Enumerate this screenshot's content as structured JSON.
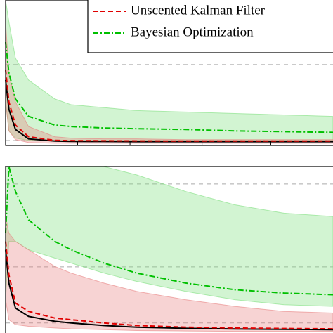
{
  "chart_data": [
    {
      "type": "line",
      "legend": "upper right",
      "grid": true,
      "x": [
        0,
        0.01,
        0.03,
        0.07,
        0.15,
        0.2,
        0.3,
        0.4,
        0.55,
        0.7,
        0.85,
        1
      ],
      "xlim": [
        0,
        1
      ],
      "xticks": [
        0.22,
        0.38,
        0.6,
        0.81
      ],
      "ylim": [
        0,
        1
      ],
      "yticks": [
        0.034,
        0.556
      ],
      "series": [
        {
          "name": "Bayesian Optimization",
          "color": "#00c000",
          "band_color": "#7fe07f",
          "line_style": "dashdot",
          "values": [
            0.71,
            0.5,
            0.32,
            0.2,
            0.14,
            0.13,
            0.12,
            0.115,
            0.11,
            0.1,
            0.095,
            0.09
          ],
          "upper": [
            1,
            0.85,
            0.6,
            0.45,
            0.32,
            0.28,
            0.26,
            0.24,
            0.23,
            0.22,
            0.21,
            0.2
          ],
          "lower": [
            0.3,
            0.1,
            0.05,
            0.035,
            0.03,
            0.03,
            0.03,
            0.03,
            0.03,
            0.03,
            0.03,
            0.03
          ]
        },
        {
          "name": "Unscented Kalman Filter",
          "color": "#e00000",
          "band_color": "#e88080",
          "line_style": "dashed",
          "values": [
            0.52,
            0.3,
            0.14,
            0.06,
            0.035,
            0.033,
            0.032,
            0.031,
            0.03,
            0.03,
            0.03,
            0.03
          ],
          "upper": [
            0.85,
            0.5,
            0.3,
            0.13,
            0.06,
            0.05,
            0.045,
            0.045,
            0.04,
            0.04,
            0.04,
            0.04
          ],
          "lower": [
            0.3,
            0.1,
            0.04,
            0.02,
            0.015,
            0.015,
            0.015,
            0.015,
            0.015,
            0.015,
            0.015,
            0.015
          ]
        },
        {
          "color": "#000000",
          "line_style": "solid",
          "values": [
            0.45,
            0.25,
            0.11,
            0.045,
            0.03,
            0.028,
            0.027,
            0.026,
            0.026,
            0.026,
            0.026,
            0.026
          ]
        }
      ]
    },
    {
      "type": "line",
      "grid": true,
      "x": [
        0,
        0.01,
        0.03,
        0.07,
        0.15,
        0.2,
        0.3,
        0.4,
        0.55,
        0.7,
        0.85,
        1
      ],
      "xlim": [
        0,
        1
      ],
      "ylim": [
        0,
        1
      ],
      "yticks": [
        0.06,
        0.397,
        0.895
      ],
      "series": [
        {
          "color": "#00c000",
          "band_color": "#7fe07f",
          "line_style": "dashdot",
          "values": [
            0.6,
            1,
            0.85,
            0.68,
            0.55,
            0.5,
            0.42,
            0.36,
            0.3,
            0.26,
            0.24,
            0.23
          ],
          "upper": [
            1,
            1,
            1,
            1,
            1,
            1,
            1,
            0.95,
            0.85,
            0.77,
            0.72,
            0.7
          ],
          "lower": [
            0.2,
            0.55,
            0.55,
            0.5,
            0.45,
            0.42,
            0.36,
            0.31,
            0.25,
            0.2,
            0.17,
            0.16
          ]
        },
        {
          "color": "#e00000",
          "band_color": "#e88080",
          "line_style": "dashed",
          "values": [
            0.55,
            0.35,
            0.18,
            0.13,
            0.09,
            0.08,
            0.06,
            0.045,
            0.035,
            0.03,
            0.027,
            0.025
          ],
          "upper": [
            0.7,
            0.6,
            0.55,
            0.5,
            0.4,
            0.36,
            0.3,
            0.25,
            0.2,
            0.16,
            0.13,
            0.12
          ],
          "lower": [
            0.2,
            0.08,
            0.05,
            0.04,
            0.03,
            0.025,
            0.02,
            0.015,
            0.012,
            0.01,
            0.01,
            0.01
          ]
        },
        {
          "color": "#000000",
          "line_style": "solid",
          "values": [
            0.5,
            0.3,
            0.15,
            0.1,
            0.07,
            0.06,
            0.045,
            0.035,
            0.028,
            0.024,
            0.022,
            0.02
          ]
        }
      ]
    }
  ]
}
